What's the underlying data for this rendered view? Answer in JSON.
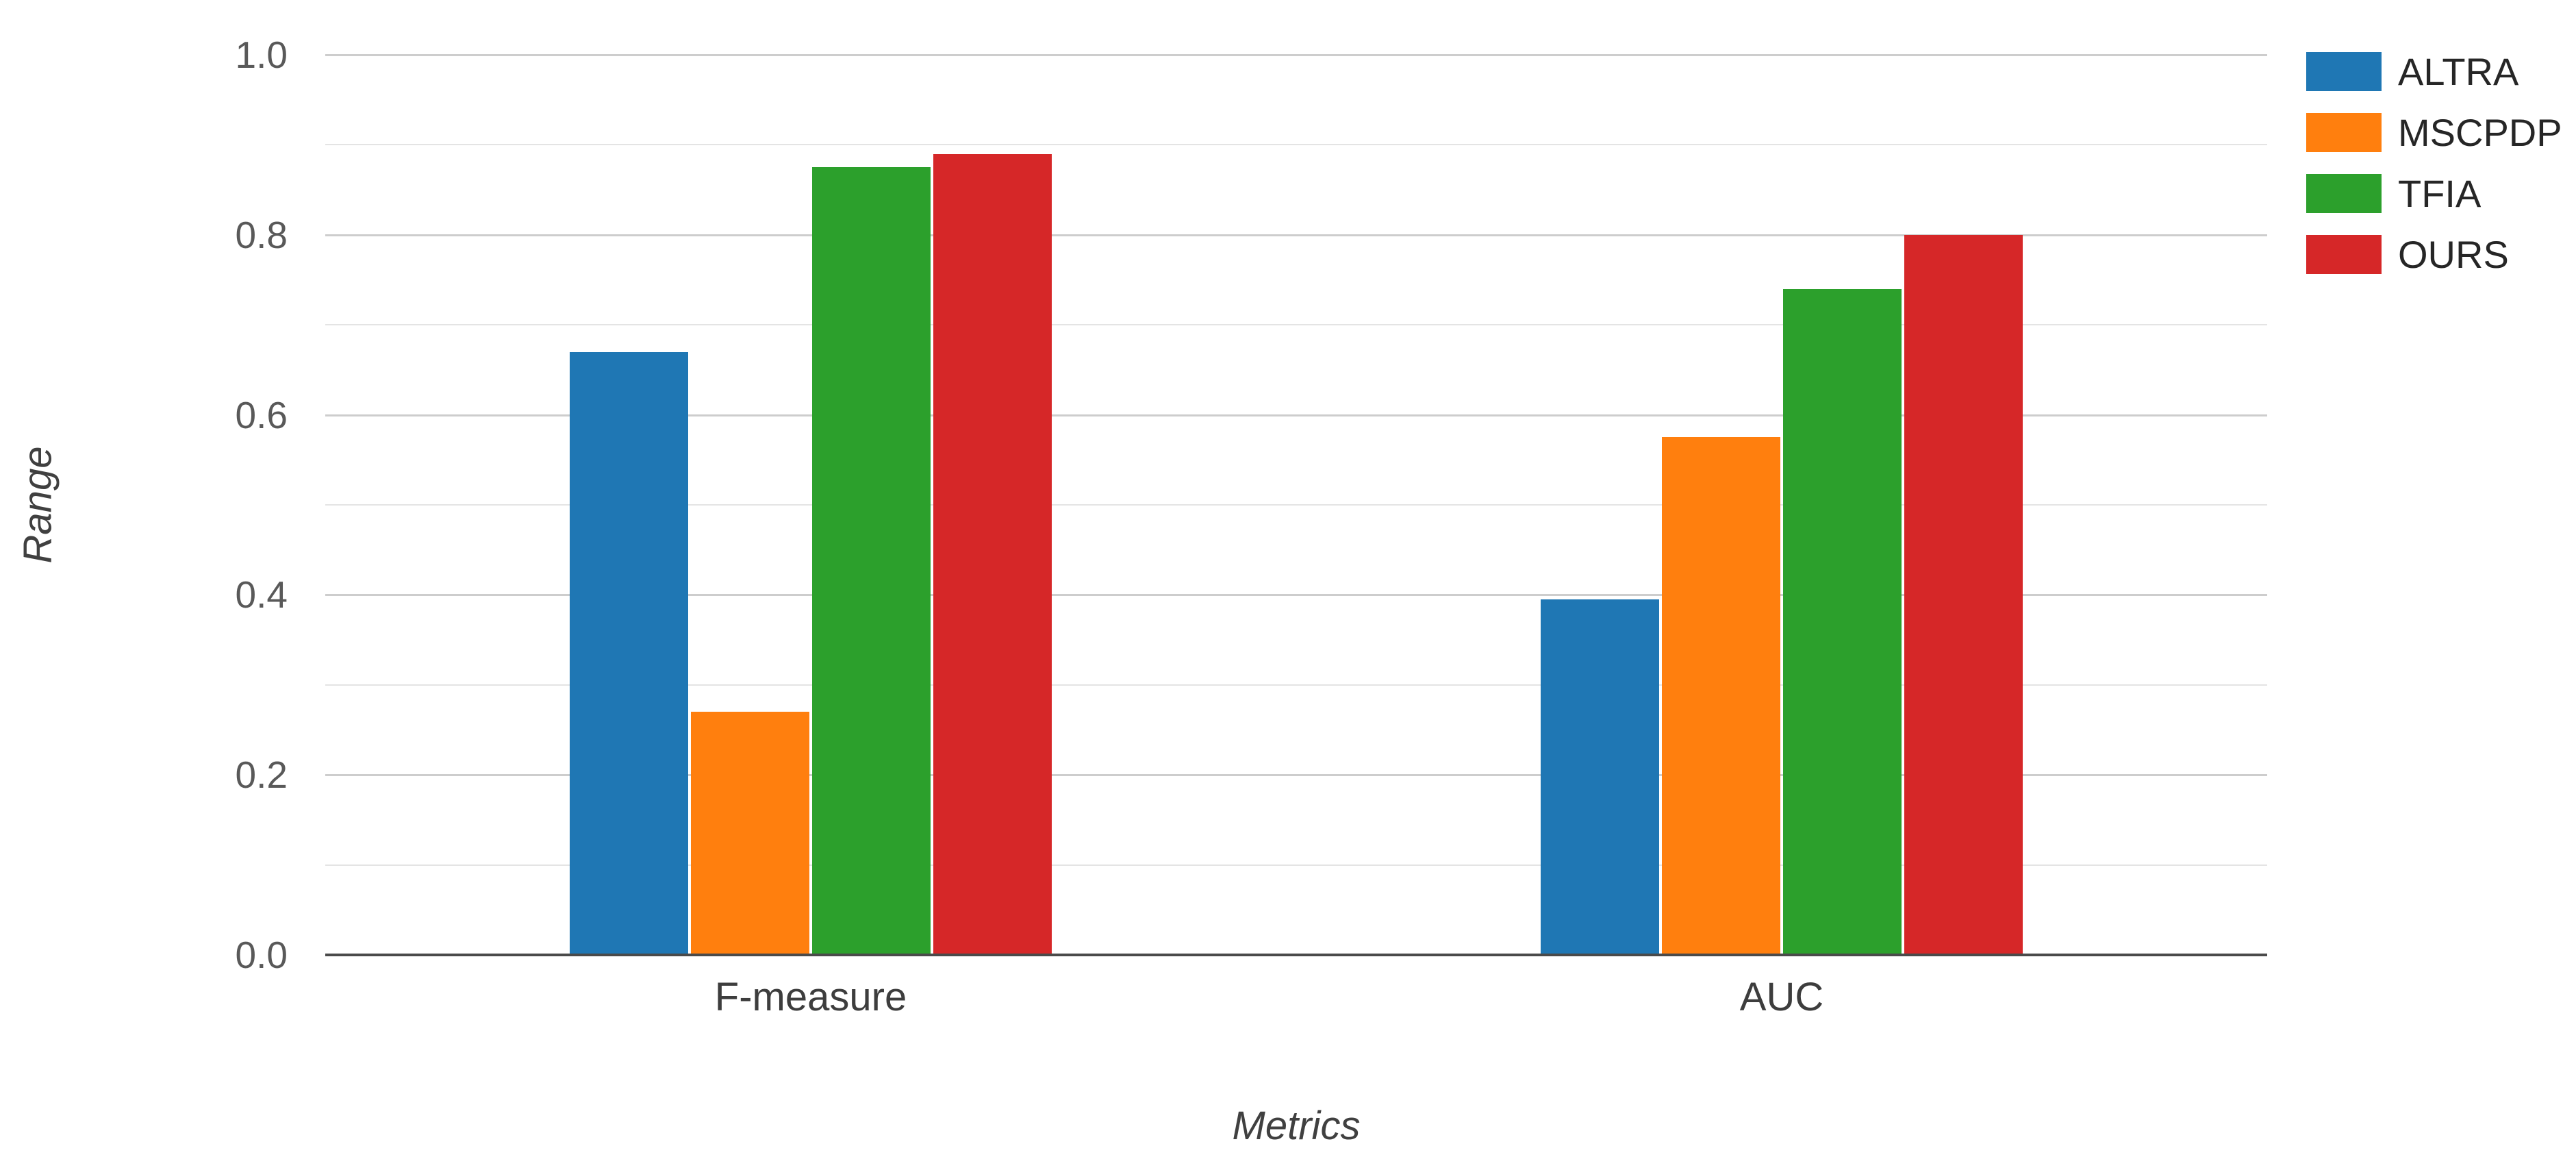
{
  "chart_data": {
    "type": "bar",
    "title": "",
    "xlabel": "Metrics",
    "ylabel": "Range",
    "categories": [
      "F-measure",
      "AUC"
    ],
    "series": [
      {
        "name": "ALTRA",
        "color": "#1f77b4",
        "values": [
          0.67,
          0.395
        ]
      },
      {
        "name": "MSCPDP",
        "color": "#ff7f0e",
        "values": [
          0.27,
          0.575
        ]
      },
      {
        "name": "TFIA",
        "color": "#2ca02c",
        "values": [
          0.875,
          0.74
        ]
      },
      {
        "name": "OURS",
        "color": "#d62728",
        "values": [
          0.89,
          0.8
        ]
      }
    ],
    "ylim": [
      0.0,
      1.0
    ],
    "yticks": [
      0.0,
      0.2,
      0.4,
      0.6,
      0.8,
      1.0
    ],
    "ytick_labels": [
      "0.0",
      "0.2",
      "0.4",
      "0.6",
      "0.8",
      "1.0"
    ],
    "minor_grid_step": 0.1,
    "grid": true,
    "legend_position": "top-right"
  }
}
